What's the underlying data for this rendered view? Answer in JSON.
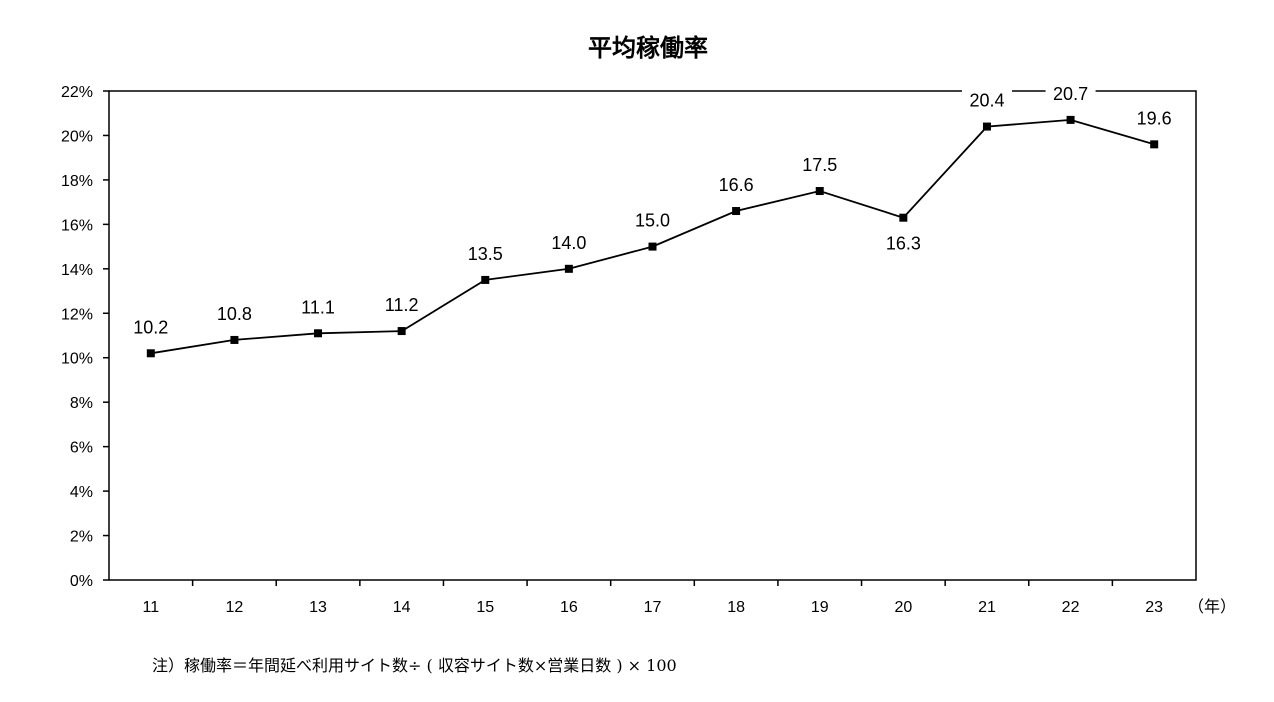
{
  "chart_data": {
    "type": "line",
    "title": "平均稼働率",
    "xlabel": "（年）",
    "ylabel": "",
    "categories": [
      "11",
      "12",
      "13",
      "14",
      "15",
      "16",
      "17",
      "18",
      "19",
      "20",
      "21",
      "22",
      "23"
    ],
    "series": [
      {
        "values": [
          10.2,
          10.8,
          11.1,
          11.2,
          13.5,
          14.0,
          15.0,
          16.6,
          17.5,
          16.3,
          20.4,
          20.7,
          19.6
        ]
      }
    ],
    "data_labels": [
      "10.2",
      "10.8",
      "11.1",
      "11.2",
      "13.5",
      "14.0",
      "15.0",
      "16.6",
      "17.5",
      "16.3",
      "20.4",
      "20.7",
      "19.6"
    ],
    "yticks": [
      "0%",
      "2%",
      "4%",
      "6%",
      "8%",
      "10%",
      "12%",
      "14%",
      "16%",
      "18%",
      "20%",
      "22%"
    ],
    "ylim": [
      0,
      22
    ],
    "grid": false,
    "legend": "none",
    "colors": {
      "line": "#000000",
      "marker": "#000000"
    }
  },
  "note": "注）稼働率＝年間延べ利用サイト数÷ ( 収容サイト数×営業日数 ) × 100"
}
